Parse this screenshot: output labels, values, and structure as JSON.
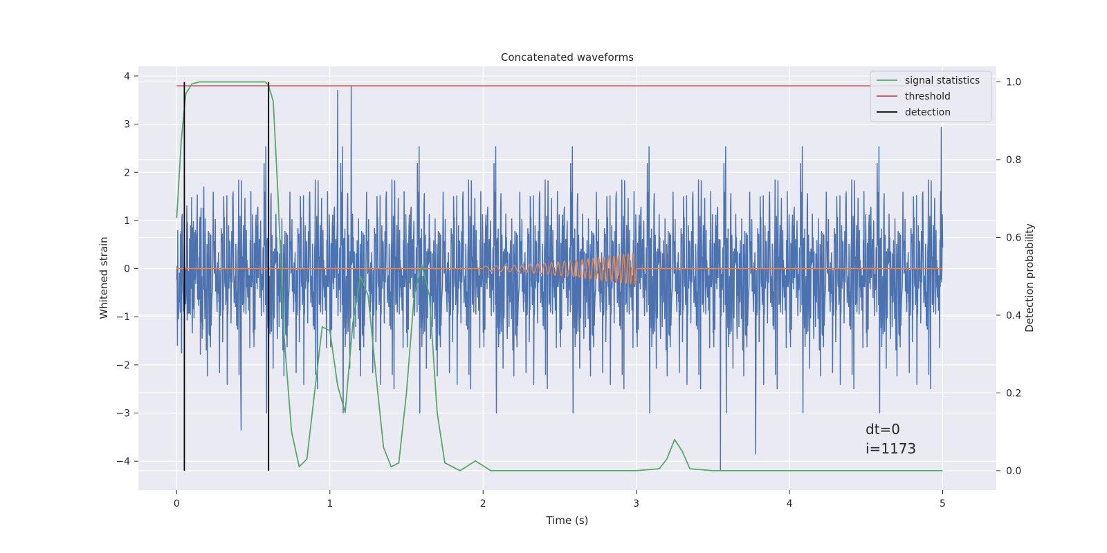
{
  "chart_data": {
    "type": "line",
    "title": "Concatenated waveforms",
    "xlabel": "Time (s)",
    "ylabel": "Whitened strain",
    "y2label": "Detection probability",
    "xlim": [
      -0.25,
      5.35
    ],
    "ylim": [
      -4.6,
      4.2
    ],
    "y2lim": [
      -0.05,
      1.04
    ],
    "xticks": [
      0,
      1,
      2,
      3,
      4,
      5
    ],
    "yticks": [
      -4,
      -3,
      -2,
      -1,
      0,
      1,
      2,
      3,
      4
    ],
    "y2ticks": [
      0.0,
      0.2,
      0.4,
      0.6,
      0.8,
      1.0
    ],
    "grid": true,
    "legend_position": "top-right",
    "series": [
      {
        "name": "",
        "axis": "left",
        "color": "#4c72b0",
        "kind": "noise",
        "x_range": [
          0,
          5
        ],
        "typical_amplitude": [
          -1.5,
          1.3
        ],
        "peak_values": [
          {
            "x": 1.14,
            "y": 3.78
          },
          {
            "x": 1.05,
            "y": 3.7
          },
          {
            "x": 4.99,
            "y": 2.93
          },
          {
            "x": 3.55,
            "y": -4.2
          },
          {
            "x": 3.78,
            "y": -3.85
          },
          {
            "x": 0.42,
            "y": -3.35
          }
        ]
      },
      {
        "name": "",
        "axis": "left",
        "color": "#dd8452",
        "kind": "chirp",
        "x_range": [
          0,
          5
        ],
        "chirp_x_range": [
          2.0,
          3.0
        ],
        "chirp_amplitude_range": [
          0.05,
          0.33
        ]
      },
      {
        "name": "signal statistics",
        "axis": "right",
        "color": "#55a868",
        "x": [
          0.0,
          0.03,
          0.06,
          0.1,
          0.15,
          0.3,
          0.58,
          0.6,
          0.63,
          0.66,
          0.7,
          0.75,
          0.8,
          0.85,
          0.9,
          0.95,
          1.0,
          1.05,
          1.1,
          1.15,
          1.2,
          1.25,
          1.3,
          1.35,
          1.4,
          1.45,
          1.5,
          1.55,
          1.6,
          1.65,
          1.7,
          1.75,
          1.85,
          1.95,
          2.05,
          2.2,
          3.0,
          3.15,
          3.2,
          3.25,
          3.3,
          3.35,
          3.5,
          5.0
        ],
        "y": [
          0.65,
          0.85,
          0.97,
          0.995,
          1.0,
          1.0,
          1.0,
          0.99,
          0.95,
          0.72,
          0.35,
          0.1,
          0.01,
          0.03,
          0.2,
          0.37,
          0.36,
          0.22,
          0.15,
          0.38,
          0.5,
          0.45,
          0.25,
          0.06,
          0.01,
          0.02,
          0.2,
          0.45,
          0.53,
          0.45,
          0.15,
          0.02,
          0.0,
          0.025,
          0.0,
          0.0,
          0.0,
          0.005,
          0.03,
          0.08,
          0.05,
          0.005,
          0.0,
          0.0
        ]
      },
      {
        "name": "threshold",
        "axis": "right",
        "color": "#c44e52",
        "x": [
          0,
          5
        ],
        "y": [
          0.99,
          0.99
        ]
      },
      {
        "name": "detection",
        "axis": "right",
        "color": "#000000",
        "kind": "vlines",
        "x": [
          0.05,
          0.6
        ],
        "y_range": [
          0.0,
          1.0
        ]
      }
    ],
    "annotations": [
      {
        "text": "dt=0",
        "x": 4.5,
        "y": -3.3
      },
      {
        "text": "i=1173",
        "x": 4.5,
        "y": -3.7
      }
    ]
  }
}
